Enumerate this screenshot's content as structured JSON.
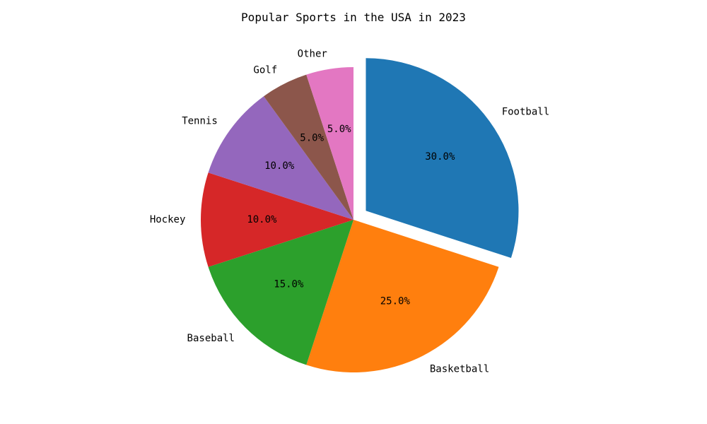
{
  "chart_data": {
    "type": "pie",
    "title": "Popular Sports in the USA in 2023",
    "slices": [
      {
        "label": "Football",
        "value": 30,
        "pct_label": "30.0%",
        "color": "#1f77b4",
        "exploded": true
      },
      {
        "label": "Basketball",
        "value": 25,
        "pct_label": "25.0%",
        "color": "#ff7f0e",
        "exploded": false
      },
      {
        "label": "Baseball",
        "value": 15,
        "pct_label": "15.0%",
        "color": "#2ca02c",
        "exploded": false
      },
      {
        "label": "Hockey",
        "value": 10,
        "pct_label": "10.0%",
        "color": "#d62728",
        "exploded": false
      },
      {
        "label": "Tennis",
        "value": 10,
        "pct_label": "10.0%",
        "color": "#9467bd",
        "exploded": false
      },
      {
        "label": "Golf",
        "value": 5,
        "pct_label": "5.0%",
        "color": "#8c564b",
        "exploded": false
      },
      {
        "label": "Other",
        "value": 5,
        "pct_label": "5.0%",
        "color": "#e377c2",
        "exploded": false
      }
    ],
    "start_angle": 90,
    "direction": "clockwise",
    "legend": "none"
  }
}
